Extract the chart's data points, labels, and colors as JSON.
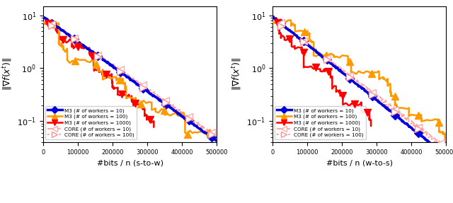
{
  "xlim": [
    0,
    500000
  ],
  "ylim": [
    0.04,
    15.0
  ],
  "xlabel1": "#bits / n (s-to-w)",
  "xlabel2": "#bits / n (w-to-s)",
  "ylabel": "$\\|\\nabla f(x^t)\\|$",
  "colors": [
    "#0000dd",
    "#ff9900",
    "#ff0000",
    "#ffaaaa",
    "#ff9090"
  ],
  "ls_list": [
    "-",
    "-",
    "-",
    "--",
    ":"
  ],
  "markers": [
    "D",
    "^",
    "v",
    "<",
    ">"
  ],
  "lw_list": [
    2.5,
    1.8,
    1.8,
    1.5,
    1.5
  ],
  "labels": [
    "M3 (# of workers = 10)",
    "M3 (# of workers = 100)",
    "M3 (# of workers = 1000)",
    "CORE (# of workers = 10)",
    "CORE (# of workers = 100)"
  ],
  "yticks": [
    0.1,
    1.0,
    10.0
  ],
  "xticks": [
    0,
    100000,
    200000,
    300000,
    400000,
    500000
  ],
  "figsize": [
    6.4,
    2.87
  ],
  "dpi": 100
}
